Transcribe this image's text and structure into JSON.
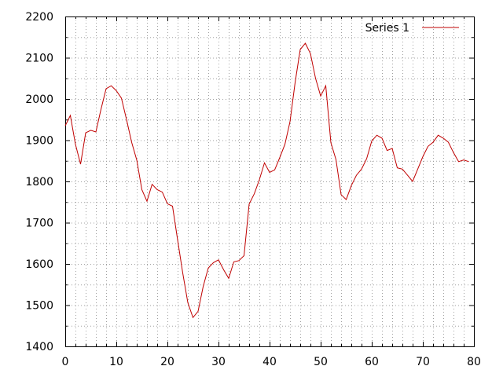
{
  "chart_data": {
    "type": "line",
    "xlim": [
      0,
      80
    ],
    "ylim": [
      1400,
      2200
    ],
    "xticks": [
      0,
      10,
      20,
      30,
      40,
      50,
      60,
      70,
      80
    ],
    "yticks": [
      1400,
      1500,
      1600,
      1700,
      1800,
      1900,
      2000,
      2100,
      2200
    ],
    "grid": true,
    "legend_position": "top-right",
    "series": [
      {
        "name": "Series 1",
        "color": "#c00000",
        "x": [
          0,
          1,
          2,
          3,
          4,
          5,
          6,
          7,
          8,
          9,
          10,
          11,
          12,
          13,
          14,
          15,
          16,
          17,
          18,
          19,
          20,
          21,
          22,
          23,
          24,
          25,
          26,
          27,
          28,
          29,
          30,
          31,
          32,
          33,
          34,
          35,
          36,
          37,
          38,
          39,
          40,
          41,
          42,
          43,
          44,
          45,
          46,
          47,
          48,
          49,
          50,
          51,
          52,
          53,
          54,
          55,
          56,
          57,
          58,
          59,
          60,
          61,
          62,
          63,
          64,
          65,
          66,
          67,
          68,
          69,
          70,
          71,
          72,
          73,
          74,
          75,
          76,
          77,
          78,
          79
        ],
        "y": [
          1935,
          1960,
          1890,
          1842,
          1918,
          1924,
          1920,
          1975,
          2025,
          2032,
          2020,
          2002,
          1950,
          1895,
          1852,
          1780,
          1752,
          1793,
          1780,
          1774,
          1746,
          1740,
          1658,
          1578,
          1506,
          1470,
          1485,
          1545,
          1590,
          1603,
          1610,
          1586,
          1565,
          1605,
          1608,
          1620,
          1745,
          1770,
          1804,
          1845,
          1822,
          1828,
          1858,
          1890,
          1945,
          2040,
          2120,
          2135,
          2110,
          2050,
          2007,
          2032,
          1894,
          1853,
          1768,
          1756,
          1790,
          1815,
          1830,
          1855,
          1898,
          1912,
          1905,
          1875,
          1880,
          1833,
          1830,
          1815,
          1800,
          1830,
          1860,
          1885,
          1895,
          1912,
          1905,
          1895,
          1870,
          1848,
          1852,
          1848
        ]
      }
    ]
  }
}
